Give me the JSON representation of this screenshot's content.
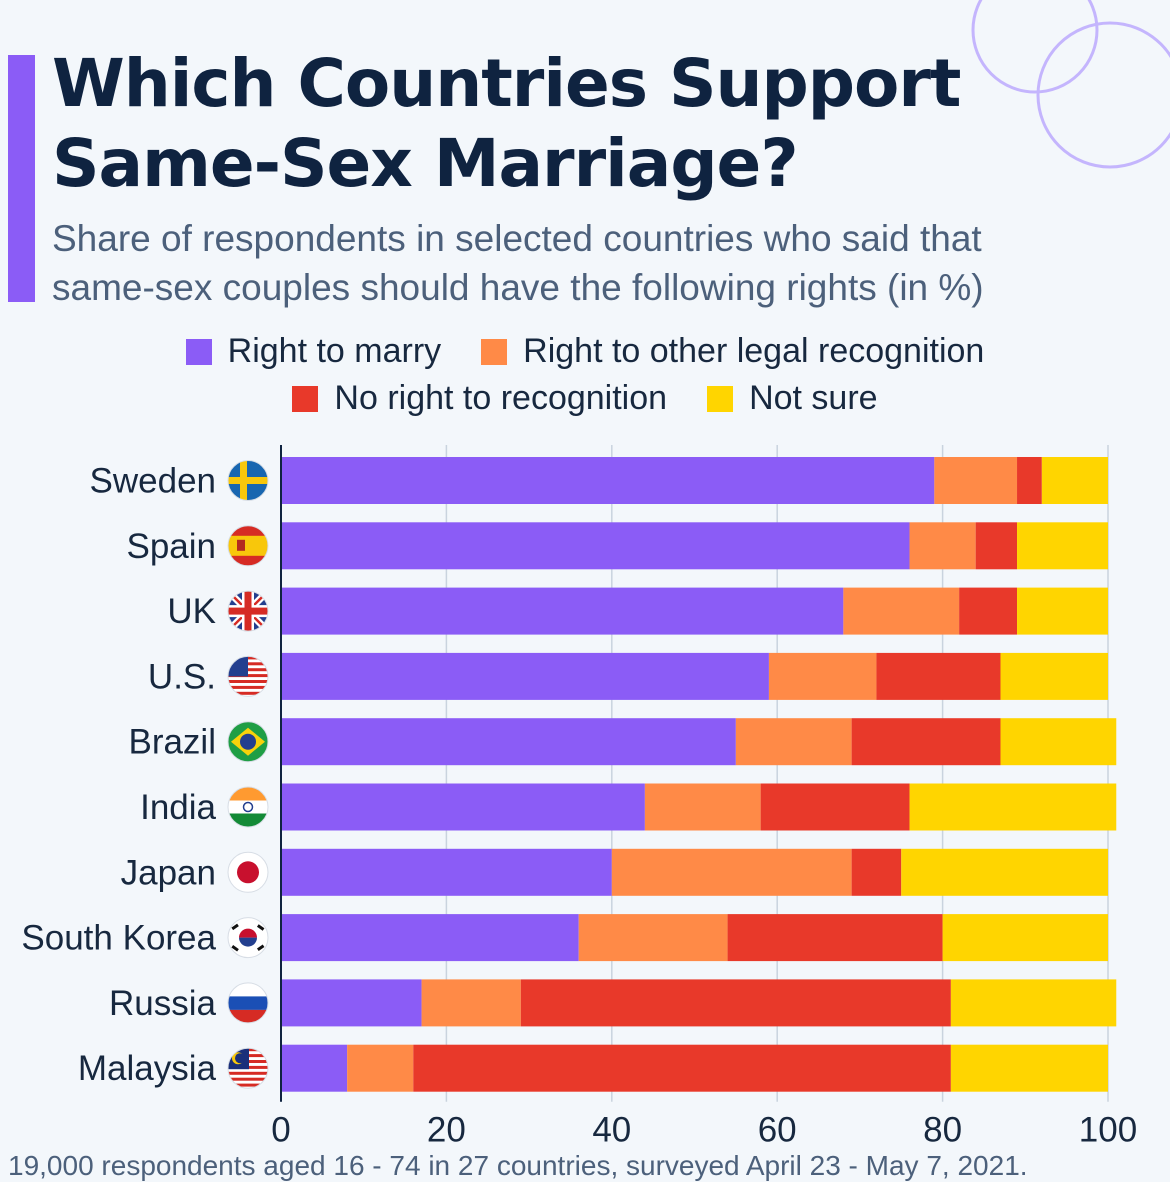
{
  "title_line1": "Which Countries Support",
  "title_line2": "Same-Sex Marriage?",
  "subtitle_line1": "Share of respondents in selected countries who said that",
  "subtitle_line2": "same-sex couples should have the following rights (in %)",
  "footer": "19,000 respondents aged 16 - 74 in 27 countries, surveyed April 23 - May 7, 2021.",
  "colors": {
    "accent": "#8b5cf6",
    "right_to_marry": "#8b5cf6",
    "other_recognition": "#ff8a47",
    "no_recognition": "#e8392a",
    "not_sure": "#ffd500"
  },
  "chart_data": {
    "type": "bar",
    "orientation": "horizontal",
    "stacked": true,
    "categories": [
      "Sweden",
      "Spain",
      "UK",
      "U.S.",
      "Brazil",
      "India",
      "Japan",
      "South Korea",
      "Russia",
      "Malaysia"
    ],
    "series": [
      {
        "name": "Right to marry",
        "color": "#8b5cf6",
        "values": [
          79,
          76,
          68,
          59,
          55,
          44,
          40,
          36,
          17,
          8
        ]
      },
      {
        "name": "Right to other legal recognition",
        "color": "#ff8a47",
        "values": [
          10,
          8,
          14,
          13,
          14,
          14,
          29,
          18,
          12,
          8
        ]
      },
      {
        "name": "No right to recognition",
        "color": "#e8392a",
        "values": [
          3,
          5,
          7,
          15,
          18,
          18,
          6,
          26,
          52,
          65
        ]
      },
      {
        "name": "Not sure",
        "color": "#ffd500",
        "values": [
          8,
          11,
          11,
          13,
          14,
          25,
          25,
          20,
          20,
          19
        ]
      }
    ],
    "xlim": [
      0,
      100
    ],
    "xticks": [
      "0",
      "20",
      "40",
      "60",
      "80",
      "100"
    ],
    "grid": true,
    "legend_position": "top"
  },
  "flags": [
    "sweden-flag-icon",
    "spain-flag-icon",
    "uk-flag-icon",
    "us-flag-icon",
    "brazil-flag-icon",
    "india-flag-icon",
    "japan-flag-icon",
    "south-korea-flag-icon",
    "russia-flag-icon",
    "malaysia-flag-icon"
  ]
}
